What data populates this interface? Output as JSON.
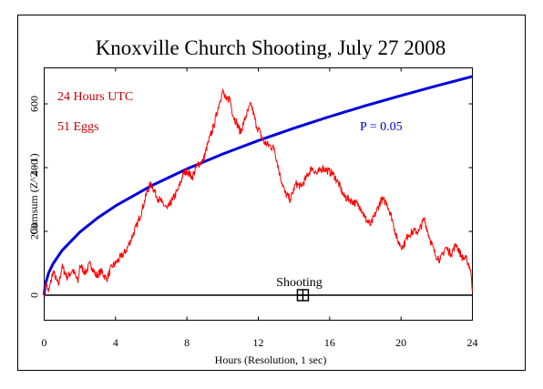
{
  "chart_data": {
    "type": "line",
    "title": "Knoxville Church Shooting, July 27 2008",
    "xlabel": "Hours (Resolution, 1 sec)",
    "ylabel": "Cumsum (Z^2 - 1)",
    "xlim": [
      0,
      24
    ],
    "ylim": [
      -80,
      700
    ],
    "x_ticks": [
      0,
      4,
      8,
      12,
      16,
      20,
      24
    ],
    "y_ticks": [
      0,
      200,
      400,
      600
    ],
    "annotations": {
      "time_basis": "24 Hours UTC",
      "eggs": "51 Eggs",
      "probability": "P = 0.05",
      "event_label": "Shooting",
      "event_hour": 14.5
    },
    "colors": {
      "cumsum": "#ff0000",
      "significance": "#0000dd",
      "baseline": "#000000",
      "text_red": "#cc0000",
      "text_blue": "#0000cc"
    },
    "series": [
      {
        "name": "Cumsum",
        "x": [
          0,
          0.1,
          0.25,
          0.5,
          0.8,
          1.0,
          1.3,
          1.6,
          1.9,
          2.0,
          2.3,
          2.6,
          2.9,
          3.2,
          3.5,
          3.8,
          4.0,
          4.3,
          4.6,
          4.9,
          5.2,
          5.5,
          5.8,
          6.0,
          6.3,
          6.6,
          6.9,
          7.2,
          7.5,
          7.8,
          8.0,
          8.3,
          8.6,
          8.9,
          9.2,
          9.5,
          9.8,
          10.0,
          10.2,
          10.4,
          10.6,
          10.8,
          11.0,
          11.3,
          11.6,
          11.9,
          12.1,
          12.3,
          12.6,
          12.9,
          13.2,
          13.5,
          13.8,
          14.1,
          14.4,
          14.7,
          15.0,
          15.3,
          15.6,
          15.9,
          16.2,
          16.5,
          16.8,
          17.1,
          17.4,
          17.7,
          18.0,
          18.3,
          18.6,
          18.9,
          19.2,
          19.5,
          19.8,
          20.1,
          20.4,
          20.7,
          21.0,
          21.3,
          21.6,
          21.9,
          22.2,
          22.5,
          22.8,
          23.1,
          23.4,
          23.7,
          23.9,
          24.0
        ],
        "y": [
          0,
          40,
          10,
          75,
          30,
          90,
          55,
          80,
          40,
          95,
          70,
          100,
          60,
          75,
          50,
          90,
          100,
          120,
          140,
          180,
          220,
          270,
          330,
          350,
          310,
          290,
          270,
          300,
          330,
          380,
          390,
          370,
          410,
          420,
          480,
          530,
          600,
          640,
          610,
          620,
          560,
          540,
          510,
          560,
          600,
          530,
          510,
          480,
          470,
          460,
          380,
          320,
          300,
          350,
          340,
          370,
          400,
          380,
          400,
          390,
          380,
          350,
          310,
          300,
          290,
          280,
          240,
          220,
          260,
          300,
          290,
          240,
          170,
          150,
          190,
          200,
          200,
          240,
          180,
          130,
          110,
          150,
          130,
          160,
          120,
          110,
          80,
          10
        ]
      },
      {
        "name": "P = 0.05",
        "x": [
          0,
          0.05,
          0.25,
          0.5,
          1,
          2,
          3,
          4,
          6,
          8,
          10,
          12,
          14,
          16,
          18,
          20,
          22,
          24
        ],
        "y": [
          0,
          31.3,
          70,
          99,
          140,
          198,
          242.5,
          280,
          342.9,
          396,
          442.7,
          485,
          523.8,
          560,
          594,
          626.1,
          656.7,
          685.9
        ]
      }
    ]
  }
}
